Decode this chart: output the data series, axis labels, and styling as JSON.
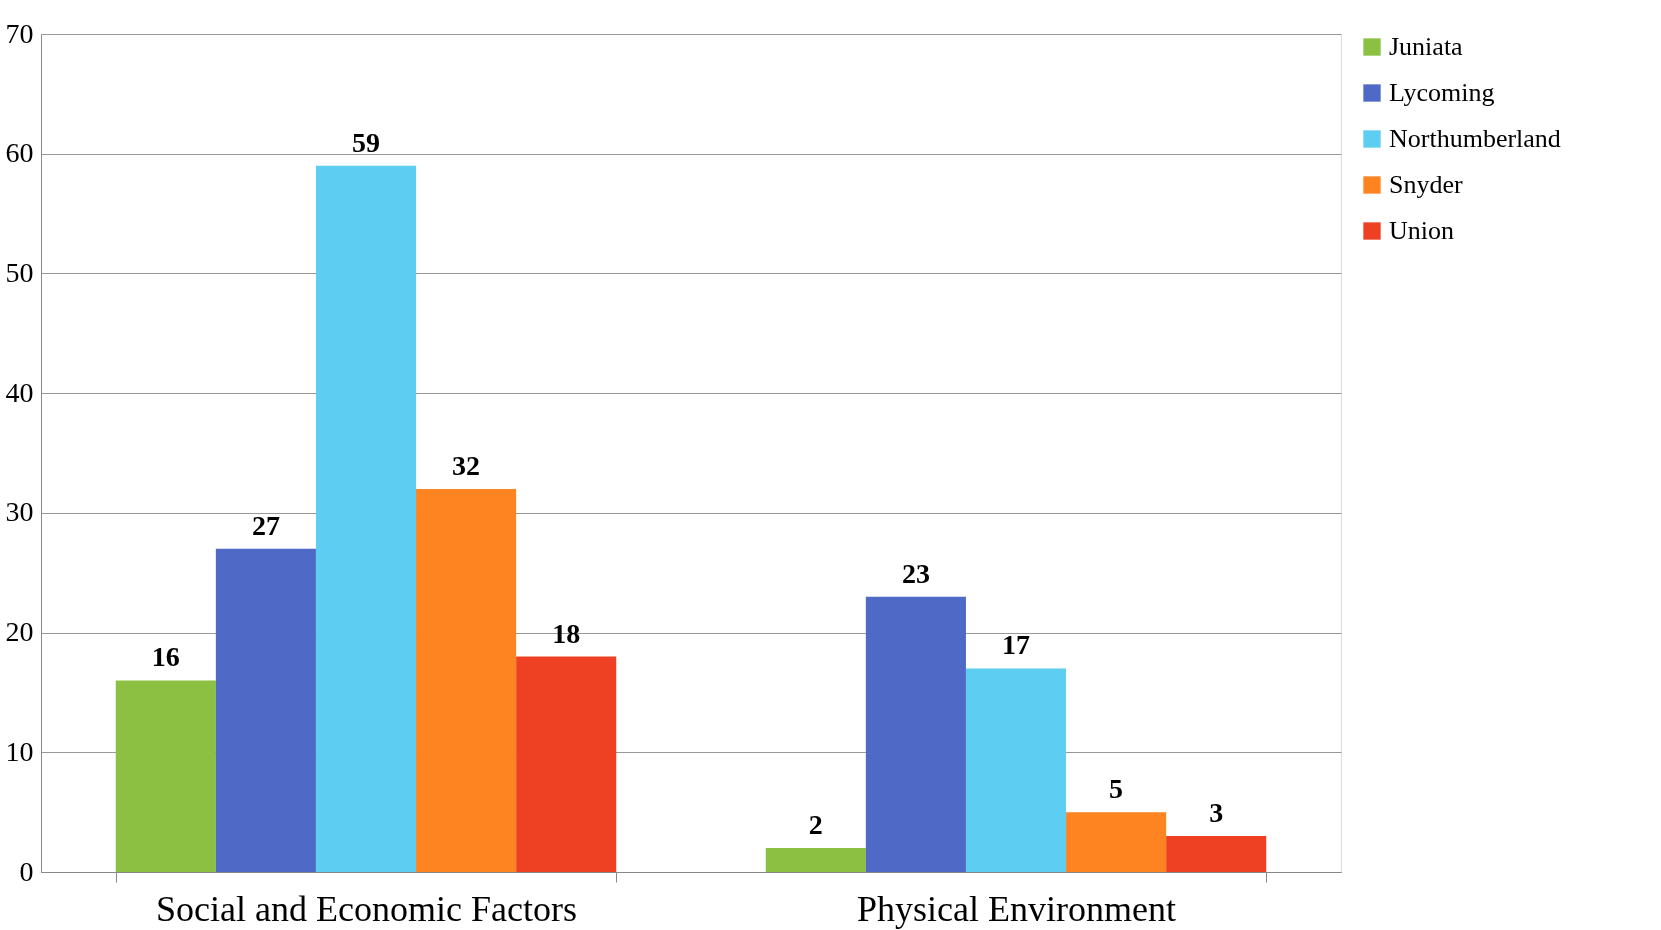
{
  "chart_data": {
    "type": "bar",
    "categories": [
      "Social and Economic Factors",
      "Physical Environment"
    ],
    "series": [
      {
        "name": "Juniata",
        "color": "#8bc043",
        "values": [
          16,
          2
        ]
      },
      {
        "name": "Lycoming",
        "color": "#4f69c6",
        "values": [
          27,
          23
        ]
      },
      {
        "name": "Northumberland",
        "color": "#5ecdf2",
        "values": [
          59,
          17
        ]
      },
      {
        "name": "Snyder",
        "color": "#fd8421",
        "values": [
          32,
          5
        ]
      },
      {
        "name": "Union",
        "color": "#ee4023",
        "values": [
          18,
          3
        ]
      }
    ],
    "ylim": [
      0,
      70
    ],
    "yticks": [
      0,
      10,
      20,
      30,
      40,
      50,
      60,
      70
    ],
    "grid": "y",
    "legend": "right",
    "data_labels": true
  }
}
